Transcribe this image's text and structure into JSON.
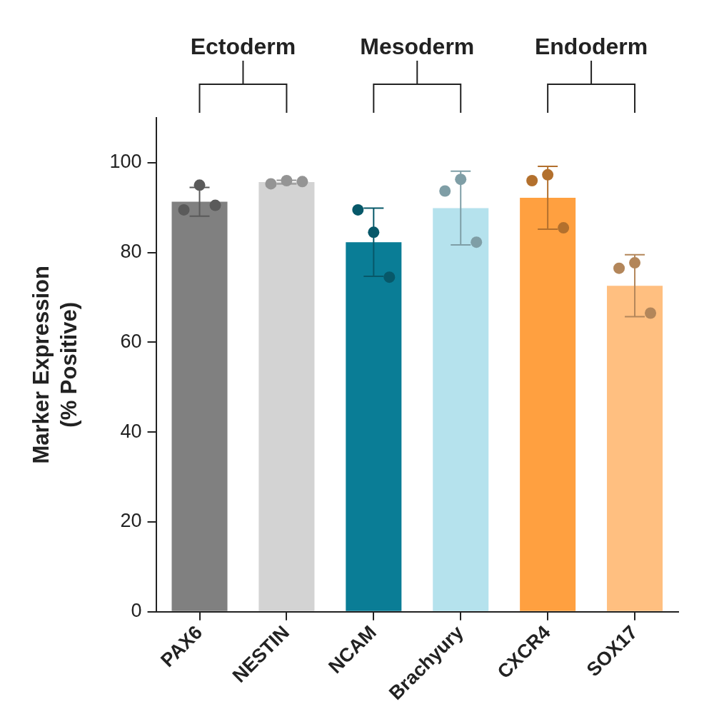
{
  "chart_data": {
    "type": "bar",
    "categories": [
      "PAX6",
      "NESTIN",
      "NCAM",
      "Brachyury",
      "CXCR4",
      "SOX17"
    ],
    "values": [
      91.3,
      95.7,
      82.3,
      89.9,
      92.2,
      72.6
    ],
    "errors": [
      3.2,
      0.4,
      7.6,
      8.2,
      7.0,
      6.9
    ],
    "points": [
      [
        89.5,
        95,
        90.5
      ],
      [
        95.3,
        96,
        95.8
      ],
      [
        89.5,
        84.5,
        74.5
      ],
      [
        93.7,
        96.3,
        82.3
      ],
      [
        96,
        97.3,
        85.5
      ],
      [
        76.5,
        77.7,
        66.5
      ]
    ],
    "colors": [
      "#808080",
      "#d3d3d3",
      "#0a7d96",
      "#b5e2ed",
      "#ffa040",
      "#ffbf80"
    ],
    "ylabel": [
      "Marker Expression",
      "(% Positive)"
    ],
    "ylim": [
      0,
      110
    ],
    "yticks": [
      0,
      20,
      40,
      60,
      80,
      100
    ],
    "grid": false,
    "groups": [
      {
        "label": "Ectoderm",
        "categories": [
          "PAX6",
          "NESTIN"
        ]
      },
      {
        "label": "Mesoderm",
        "categories": [
          "NCAM",
          "Brachyury"
        ]
      },
      {
        "label": "Endoderm",
        "categories": [
          "CXCR4",
          "SOX17"
        ]
      }
    ]
  }
}
